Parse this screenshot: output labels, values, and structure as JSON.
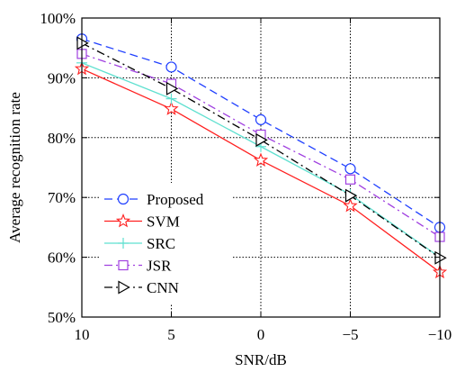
{
  "chart_data": {
    "type": "line",
    "xlabel": "SNR/dB",
    "ylabel": "Average recognition rate",
    "x": [
      10,
      5,
      0,
      -5,
      -10
    ],
    "x_tick_labels": [
      "10",
      "5",
      "0",
      "−5",
      "−10"
    ],
    "y_tick_labels": [
      "50%",
      "60%",
      "70%",
      "80%",
      "90%",
      "100%"
    ],
    "xlim": [
      10,
      -10
    ],
    "ylim": [
      50,
      100
    ],
    "grid": "on",
    "legend_position": "lower-left",
    "series": [
      {
        "name": "Proposed",
        "color": "#1f3fff",
        "dash": "dash",
        "marker": "circle",
        "values": [
          96.5,
          91.8,
          83.0,
          74.8,
          65.0
        ]
      },
      {
        "name": "SVM",
        "color": "#ff2020",
        "dash": "solid",
        "marker": "star",
        "values": [
          91.5,
          84.8,
          76.2,
          68.6,
          57.5
        ]
      },
      {
        "name": "SRC",
        "color": "#5fe0d0",
        "dash": "solid",
        "marker": "plus",
        "values": [
          92.5,
          86.5,
          78.5,
          70.5,
          60.0
        ]
      },
      {
        "name": "JSR",
        "color": "#a040e0",
        "dash": "dashdot",
        "marker": "square",
        "values": [
          94.0,
          89.0,
          80.5,
          73.0,
          63.4
        ]
      },
      {
        "name": "CNN",
        "color": "#000000",
        "dash": "dashdot",
        "marker": "triangle",
        "values": [
          95.8,
          88.2,
          79.6,
          70.3,
          59.9
        ]
      }
    ]
  }
}
